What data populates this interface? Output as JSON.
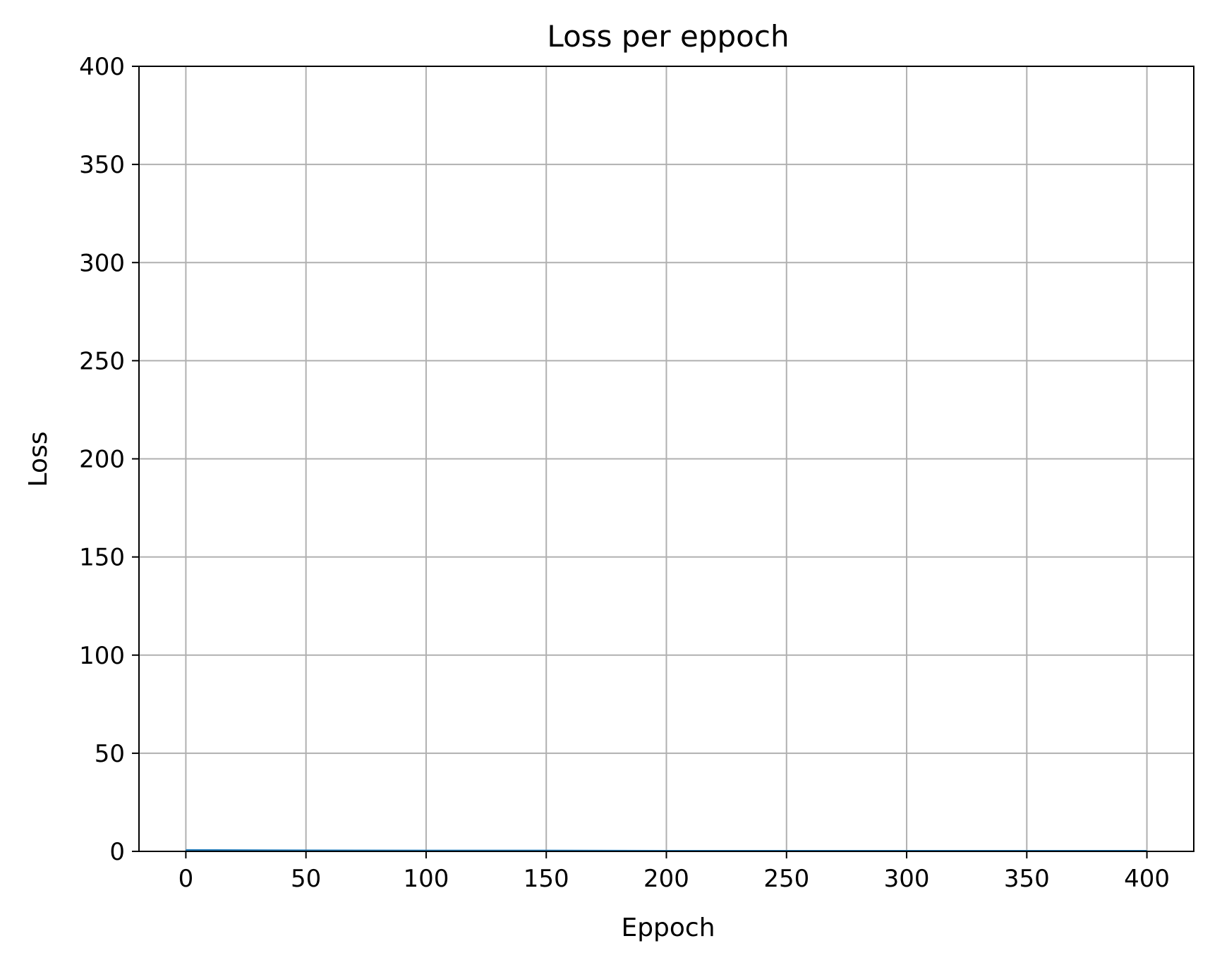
{
  "chart_data": {
    "type": "line",
    "title": "Loss per eppoch",
    "xlabel": "Eppoch",
    "ylabel": "Loss",
    "xlim": [
      -19.5,
      419.5
    ],
    "ylim": [
      0,
      400
    ],
    "xticks": [
      0,
      50,
      100,
      150,
      200,
      250,
      300,
      350,
      400
    ],
    "yticks": [
      0,
      50,
      100,
      150,
      200,
      250,
      300,
      350,
      400
    ],
    "grid": true,
    "series": [
      {
        "color": "#1f77b4",
        "x": [
          0,
          50,
          100,
          150,
          200,
          250,
          300,
          350,
          400
        ],
        "y": [
          0.6,
          0.4,
          0.3,
          0.3,
          0.2,
          0.2,
          0.2,
          0.2,
          0.2
        ]
      }
    ],
    "colors": {
      "grid": "#b0b0b0",
      "axes": "#000000",
      "background": "#ffffff"
    }
  }
}
